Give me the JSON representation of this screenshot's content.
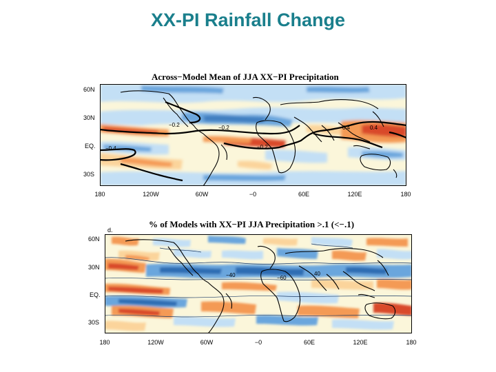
{
  "slide": {
    "title": "XX-PI Rainfall Change"
  },
  "colors": {
    "wet_strong": "#2f6db3",
    "wet_mid": "#6aa6dd",
    "wet_light": "#c3dff5",
    "neutral": "#fbf6da",
    "dry_light": "#fbd49b",
    "dry_mid": "#f49a55",
    "dry_strong": "#d94a2a"
  },
  "chart_data": [
    {
      "type": "heatmap",
      "title": "Across−Model Mean of JJA XX−PI Precipitation",
      "x_ticks": [
        "180",
        "120W",
        "60W",
        "−0",
        "60E",
        "120E",
        "180"
      ],
      "y_ticks": [
        "60N",
        "30N",
        "EQ.",
        "30S"
      ],
      "xlim": [
        -180,
        180
      ],
      "ylim": [
        -45,
        70
      ],
      "contour_labels": [
        "−0.2",
        "−0.4",
        "−0.2",
        "−0.2",
        "0.4",
        "0.4"
      ],
      "grid": false
    },
    {
      "type": "heatmap",
      "title": "% of Models with XX−PI JJA Precipitation >.1 (<−.1)",
      "panel_letter": "d.",
      "x_ticks": [
        "180",
        "120W",
        "60W",
        "−0",
        "60E",
        "120E",
        "180"
      ],
      "y_ticks": [
        "60N",
        "30N",
        "EQ.",
        "30S"
      ],
      "xlim": [
        -180,
        180
      ],
      "ylim": [
        -45,
        70
      ],
      "contour_labels": [
        "−40",
        "−60",
        "40"
      ],
      "grid": false
    }
  ]
}
